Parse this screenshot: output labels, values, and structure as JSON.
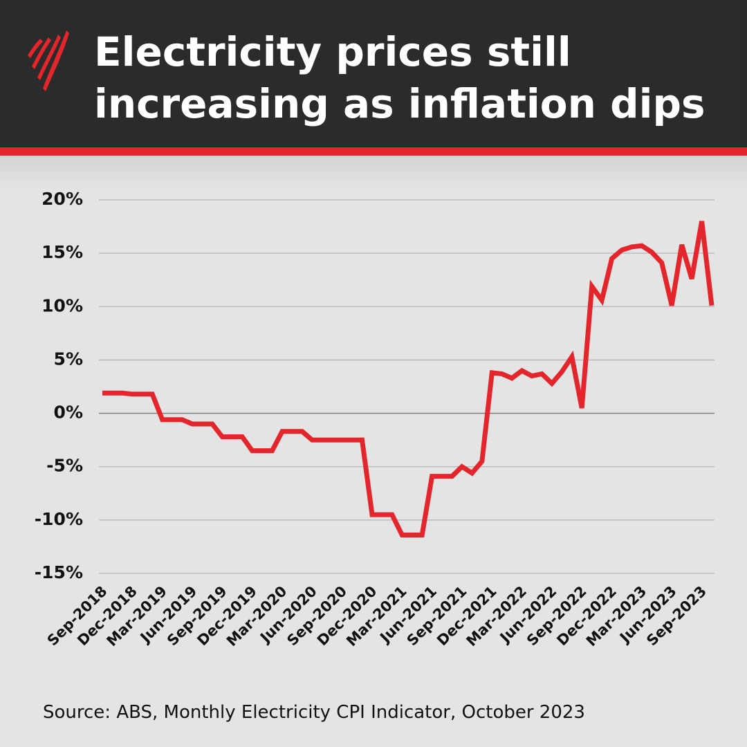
{
  "chart_data": {
    "type": "line",
    "title": [
      "Electricity prices still",
      "increasing as inflation dips"
    ],
    "source": "Source: ABS,  Monthly Electricity CPI Indicator, October 2023",
    "categories": [
      "Sep-2018",
      null,
      null,
      "Dec-2018",
      null,
      null,
      "Mar-2019",
      null,
      null,
      "Jun-2019",
      null,
      null,
      "Sep-2019",
      null,
      null,
      "Dec-2019",
      null,
      null,
      "Mar-2020",
      null,
      null,
      "Jun-2020",
      null,
      null,
      "Sep-2020",
      null,
      null,
      "Dec-2020",
      null,
      null,
      "Mar-2021",
      null,
      null,
      "Jun-2021",
      null,
      null,
      "Sep-2021",
      null,
      null,
      "Dec-2021",
      null,
      null,
      "Mar-2022",
      null,
      null,
      "Jun-2022",
      null,
      null,
      "Sep-2022",
      null,
      null,
      "Dec-2022",
      null,
      null,
      "Mar-2023",
      null,
      null,
      "Jun-2023",
      null,
      null,
      "Sep-2023",
      null
    ],
    "values": [
      1.9,
      1.9,
      1.9,
      1.8,
      1.8,
      1.8,
      -0.6,
      -0.6,
      -0.6,
      -1.0,
      -1.0,
      -1.0,
      -2.2,
      -2.2,
      -2.2,
      -3.5,
      -3.5,
      -3.5,
      -1.7,
      -1.7,
      -1.7,
      -2.5,
      -2.5,
      -2.5,
      -2.5,
      -2.5,
      -2.5,
      -9.5,
      -9.5,
      -9.5,
      -11.4,
      -11.4,
      -11.4,
      -5.9,
      -5.9,
      -5.9,
      -5.0,
      -5.6,
      -4.5,
      3.8,
      3.7,
      3.3,
      4.0,
      3.5,
      3.7,
      2.8,
      3.9,
      5.3,
      0.5,
      11.9,
      10.6,
      14.5,
      15.3,
      15.6,
      15.7,
      15.1,
      14.1,
      10.1,
      15.8,
      12.6,
      18.0,
      10.1
    ],
    "color": "#e3262b",
    "ylim": [
      -15,
      20
    ],
    "yticks": [
      {
        "value": -15,
        "label": "-15%"
      },
      {
        "value": -10,
        "label": "-10%"
      },
      {
        "value": -5,
        "label": "-5%"
      },
      {
        "value": 0,
        "label": "0%"
      },
      {
        "value": 5,
        "label": "5%"
      },
      {
        "value": 10,
        "label": "10%"
      },
      {
        "value": 15,
        "label": "15%"
      },
      {
        "value": 20,
        "label": "20%"
      }
    ],
    "grid": true
  }
}
